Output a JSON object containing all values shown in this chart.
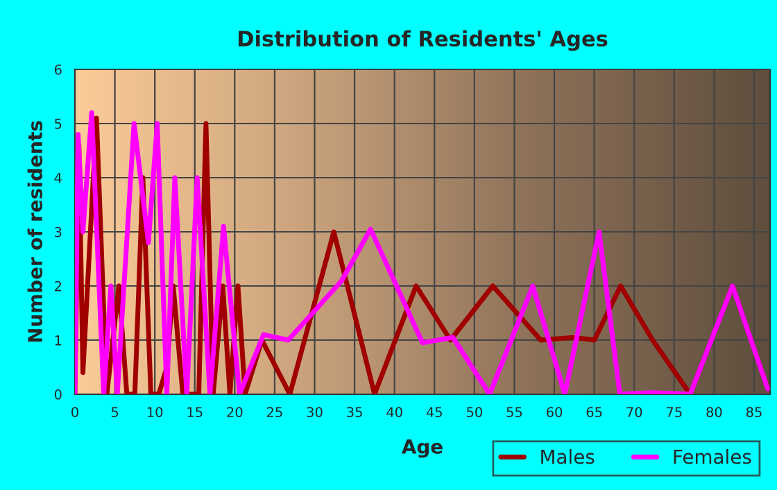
{
  "chart_data": {
    "type": "line",
    "title": "Distribution of Residents' Ages",
    "xlabel": "Age",
    "ylabel": "Number of residents",
    "xlim": [
      0,
      87
    ],
    "xticks": [
      0,
      5,
      10,
      15,
      20,
      25,
      30,
      35,
      40,
      45,
      50,
      55,
      60,
      65,
      70,
      75,
      80,
      85
    ],
    "ylim": [
      0,
      6
    ],
    "yticks": [
      0,
      1,
      2,
      3,
      4,
      5,
      6
    ],
    "grid": true,
    "legend": "bottom right",
    "series": [
      {
        "name": "Males",
        "color": "#a00000",
        "x": [
          0,
          0.5,
          1,
          2.7,
          4,
          5.5,
          6.5,
          7.5,
          8.5,
          9.5,
          10.5,
          11.5,
          12.3,
          13.5,
          15.5,
          16.4,
          17.3,
          18.5,
          19.4,
          20.4,
          21.3,
          23.4,
          26.9,
          32.4,
          37.5,
          42.7,
          47,
          52.3,
          58.3,
          62.4,
          65,
          68.3,
          72.3,
          77,
          82.3,
          86.7
        ],
        "values": [
          0,
          4.6,
          0.4,
          5.1,
          0,
          2,
          0,
          0,
          4,
          0,
          0,
          0.5,
          2,
          0,
          0,
          5,
          0,
          2,
          0,
          2,
          0,
          1,
          0,
          3,
          0,
          2,
          1,
          2,
          1,
          1.05,
          1,
          2,
          1,
          0,
          2,
          0.1
        ]
      },
      {
        "name": "Females",
        "color": "#ff00ff",
        "x": [
          0,
          0.4,
          1,
          2.1,
          3.6,
          4.5,
          5.3,
          7.4,
          9.2,
          10.3,
          11.5,
          12.5,
          14,
          15.3,
          16.9,
          18.6,
          20.6,
          23.6,
          26.7,
          33.4,
          37,
          43.5,
          47.3,
          51.9,
          57.3,
          61.3,
          65.6,
          68.2,
          72.3,
          77,
          82.3,
          86.7
        ],
        "values": [
          0,
          4.8,
          3,
          5.2,
          0,
          2,
          0,
          5,
          2.8,
          5,
          0,
          4,
          0,
          4,
          0,
          3.1,
          0,
          1.1,
          1,
          2.1,
          3.05,
          0.95,
          1.05,
          0,
          2,
          0,
          3,
          0,
          0.03,
          0,
          2,
          0.1
        ]
      }
    ]
  }
}
